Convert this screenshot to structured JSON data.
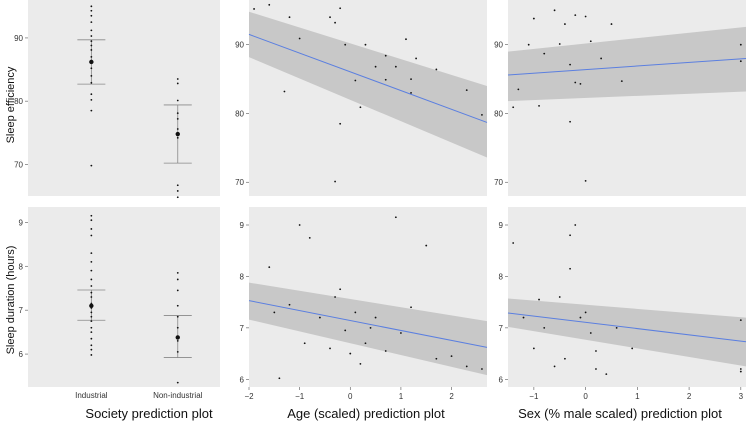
{
  "row_labels": [
    "Sleep efficiency",
    "Sleep duration (hours)"
  ],
  "column_labels": [
    "Society prediction plot",
    "Age (scaled) prediction plot",
    "Sex (% male scaled) prediction plot"
  ],
  "colors": {
    "panel_bg": "#ebebeb",
    "band": "#c8c8c8",
    "line": "#5b7fe0",
    "point": "#111111",
    "errbar": "#888888"
  },
  "chart_data": [
    {
      "id": "society_efficiency",
      "type": "scatter",
      "subtype": "categorical-means",
      "xlabel": "",
      "ylabel": "Sleep efficiency",
      "categories": [],
      "ylim": [
        65,
        96
      ],
      "yticks": [
        70,
        80,
        90
      ],
      "groups": [
        {
          "name": "Industrial",
          "mean": 86.2,
          "ci": [
            82.7,
            89.7
          ],
          "points": [
            69.8,
            78.5,
            80.2,
            81.1,
            82.9,
            84.0,
            85.2,
            86.4,
            87.0,
            88.1,
            88.8,
            89.5,
            90.3,
            91.2,
            92.5,
            93.5,
            94.3,
            95.0
          ]
        },
        {
          "name": "Non-industrial",
          "mean": 74.8,
          "ci": [
            70.2,
            79.4
          ],
          "points": [
            64.8,
            65.8,
            66.7,
            74.2,
            75.6,
            77.2,
            78.1,
            80.1,
            82.8,
            83.5
          ]
        }
      ]
    },
    {
      "id": "age_efficiency",
      "type": "line",
      "xlabel": "",
      "ylabel": "",
      "xlim": [
        -2,
        2.7
      ],
      "ylim": [
        68,
        96.5
      ],
      "yticks": [
        70,
        80,
        90
      ],
      "fit": {
        "x": [
          -2,
          2.7
        ],
        "y": [
          91.5,
          78.7
        ]
      },
      "band": {
        "x": [
          -2,
          2.7
        ],
        "lower": [
          88.2,
          73.6
        ],
        "upper": [
          94.8,
          84.0
        ]
      },
      "points": [
        {
          "x": -1.9,
          "y": 95.2
        },
        {
          "x": -1.6,
          "y": 95.8
        },
        {
          "x": -1.3,
          "y": 83.2
        },
        {
          "x": -1.2,
          "y": 94.0
        },
        {
          "x": -1.0,
          "y": 90.9
        },
        {
          "x": -0.4,
          "y": 94.0
        },
        {
          "x": -0.3,
          "y": 93.2
        },
        {
          "x": -0.2,
          "y": 95.3
        },
        {
          "x": -0.1,
          "y": 90.0
        },
        {
          "x": 0.1,
          "y": 84.8
        },
        {
          "x": 0.3,
          "y": 90.0
        },
        {
          "x": 0.5,
          "y": 86.8
        },
        {
          "x": 0.7,
          "y": 88.4
        },
        {
          "x": 0.7,
          "y": 84.9
        },
        {
          "x": 0.9,
          "y": 86.8
        },
        {
          "x": 1.1,
          "y": 90.8
        },
        {
          "x": 1.2,
          "y": 85.0
        },
        {
          "x": 1.3,
          "y": 88.0
        },
        {
          "x": 1.7,
          "y": 86.4
        },
        {
          "x": -0.3,
          "y": 70.1
        },
        {
          "x": -0.2,
          "y": 78.5
        },
        {
          "x": 0.2,
          "y": 80.9
        },
        {
          "x": 2.3,
          "y": 83.4
        },
        {
          "x": 2.6,
          "y": 79.8
        },
        {
          "x": 1.2,
          "y": 83.0
        }
      ]
    },
    {
      "id": "sex_efficiency",
      "type": "line",
      "xlabel": "",
      "ylabel": "",
      "xlim": [
        -1.5,
        3.1
      ],
      "ylim": [
        68,
        96.5
      ],
      "yticks": [
        70,
        80,
        90
      ],
      "fit": {
        "x": [
          -1.5,
          3.1
        ],
        "y": [
          85.6,
          88.0
        ]
      },
      "band": {
        "x": [
          -1.5,
          3.1
        ],
        "lower": [
          81.8,
          83.2
        ],
        "upper": [
          89.0,
          92.6
        ]
      },
      "points": [
        {
          "x": -1.3,
          "y": 83.5
        },
        {
          "x": -1.1,
          "y": 90.0
        },
        {
          "x": -1.0,
          "y": 93.8
        },
        {
          "x": -0.9,
          "y": 81.1
        },
        {
          "x": -0.8,
          "y": 88.7
        },
        {
          "x": -0.6,
          "y": 95.0
        },
        {
          "x": -0.5,
          "y": 90.1
        },
        {
          "x": -0.4,
          "y": 93.0
        },
        {
          "x": -0.3,
          "y": 87.1
        },
        {
          "x": -0.2,
          "y": 84.5
        },
        {
          "x": -0.2,
          "y": 94.3
        },
        {
          "x": 0.1,
          "y": 90.5
        },
        {
          "x": 0.0,
          "y": 94.1
        },
        {
          "x": -0.1,
          "y": 84.3
        },
        {
          "x": 0.3,
          "y": 88.0
        },
        {
          "x": 0.5,
          "y": 93.0
        },
        {
          "x": 0.0,
          "y": 70.2
        },
        {
          "x": -0.3,
          "y": 78.8
        },
        {
          "x": 0.7,
          "y": 84.7
        },
        {
          "x": 3.0,
          "y": 90.0
        },
        {
          "x": 3.0,
          "y": 87.6
        },
        {
          "x": -1.4,
          "y": 80.9
        }
      ]
    },
    {
      "id": "society_duration",
      "type": "scatter",
      "subtype": "categorical-means",
      "xlabel": "",
      "ylabel": "Sleep duration (hours)",
      "categories": [
        "Industrial",
        "Non-industrial"
      ],
      "ylim": [
        5.25,
        9.35
      ],
      "yticks": [
        6,
        7,
        8,
        9
      ],
      "groups": [
        {
          "name": "Industrial",
          "mean": 7.1,
          "ci": [
            6.77,
            7.46
          ],
          "points": [
            5.98,
            6.1,
            6.2,
            6.35,
            6.5,
            6.6,
            6.75,
            6.85,
            6.95,
            7.05,
            7.15,
            7.3,
            7.4,
            7.55,
            7.7,
            7.9,
            8.1,
            8.3,
            8.7,
            8.85,
            9.05,
            9.15
          ]
        },
        {
          "name": "Non-industrial",
          "mean": 6.38,
          "ci": [
            5.92,
            6.88
          ],
          "points": [
            5.35,
            6.05,
            6.3,
            6.6,
            6.85,
            7.1,
            7.45,
            7.7,
            7.85
          ]
        }
      ]
    },
    {
      "id": "age_duration",
      "type": "line",
      "xlabel": "Age (scaled) prediction plot",
      "ylabel": "",
      "xlim": [
        -2,
        2.7
      ],
      "ylim": [
        5.85,
        9.35
      ],
      "yticks": [
        6,
        7,
        8,
        9
      ],
      "xticks": [
        -2,
        -1,
        0,
        1,
        2
      ],
      "fit": {
        "x": [
          -2,
          2.7
        ],
        "y": [
          7.53,
          6.62
        ]
      },
      "band": {
        "x": [
          -2,
          2.7
        ],
        "lower": [
          7.16,
          6.08
        ],
        "upper": [
          7.88,
          7.13
        ]
      },
      "points": [
        {
          "x": -1.6,
          "y": 8.18
        },
        {
          "x": -1.4,
          "y": 6.02
        },
        {
          "x": -1.2,
          "y": 7.45
        },
        {
          "x": -1.0,
          "y": 9.0
        },
        {
          "x": -0.8,
          "y": 8.75
        },
        {
          "x": -0.6,
          "y": 7.2
        },
        {
          "x": -0.4,
          "y": 6.6
        },
        {
          "x": -0.3,
          "y": 7.6
        },
        {
          "x": -0.2,
          "y": 7.75
        },
        {
          "x": -0.1,
          "y": 6.95
        },
        {
          "x": 0.1,
          "y": 7.3
        },
        {
          "x": 0.2,
          "y": 6.3
        },
        {
          "x": 0.3,
          "y": 6.7
        },
        {
          "x": 0.5,
          "y": 7.2
        },
        {
          "x": 0.7,
          "y": 6.55
        },
        {
          "x": 0.9,
          "y": 9.15
        },
        {
          "x": 1.0,
          "y": 6.9
        },
        {
          "x": 1.5,
          "y": 8.6
        },
        {
          "x": 1.7,
          "y": 6.4
        },
        {
          "x": 2.0,
          "y": 6.45
        },
        {
          "x": 2.3,
          "y": 6.25
        },
        {
          "x": 2.6,
          "y": 6.2
        },
        {
          "x": -1.5,
          "y": 7.3
        },
        {
          "x": -0.9,
          "y": 6.7
        },
        {
          "x": 0.0,
          "y": 6.5
        },
        {
          "x": 0.4,
          "y": 7.0
        },
        {
          "x": 1.2,
          "y": 7.4
        }
      ]
    },
    {
      "id": "sex_duration",
      "type": "line",
      "xlabel": "Sex (% male scaled) prediction plot",
      "ylabel": "",
      "xlim": [
        -1.5,
        3.1
      ],
      "ylim": [
        5.85,
        9.35
      ],
      "yticks": [
        6,
        7,
        8,
        9
      ],
      "xticks": [
        -1,
        0,
        1,
        2,
        3
      ],
      "fit": {
        "x": [
          -1.5,
          3.1
        ],
        "y": [
          7.29,
          6.73
        ]
      },
      "band": {
        "x": [
          -1.5,
          3.1
        ],
        "lower": [
          7.02,
          6.25
        ],
        "upper": [
          7.57,
          7.2
        ]
      },
      "points": [
        {
          "x": -1.4,
          "y": 8.65
        },
        {
          "x": -1.2,
          "y": 7.2
        },
        {
          "x": -1.0,
          "y": 6.6
        },
        {
          "x": -0.9,
          "y": 7.55
        },
        {
          "x": -0.8,
          "y": 7.0
        },
        {
          "x": -0.6,
          "y": 6.25
        },
        {
          "x": -0.5,
          "y": 7.6
        },
        {
          "x": -0.4,
          "y": 6.4
        },
        {
          "x": -0.3,
          "y": 8.8
        },
        {
          "x": -0.2,
          "y": 9.0
        },
        {
          "x": -0.1,
          "y": 7.2
        },
        {
          "x": 0.0,
          "y": 7.3
        },
        {
          "x": 0.1,
          "y": 6.9
        },
        {
          "x": 0.2,
          "y": 6.55
        },
        {
          "x": 0.4,
          "y": 6.1
        },
        {
          "x": 0.6,
          "y": 7.0
        },
        {
          "x": 0.9,
          "y": 6.6
        },
        {
          "x": 3.0,
          "y": 6.15
        },
        {
          "x": 3.0,
          "y": 6.2
        },
        {
          "x": 3.0,
          "y": 7.15
        },
        {
          "x": -0.3,
          "y": 8.15
        },
        {
          "x": 0.2,
          "y": 6.2
        }
      ]
    }
  ]
}
